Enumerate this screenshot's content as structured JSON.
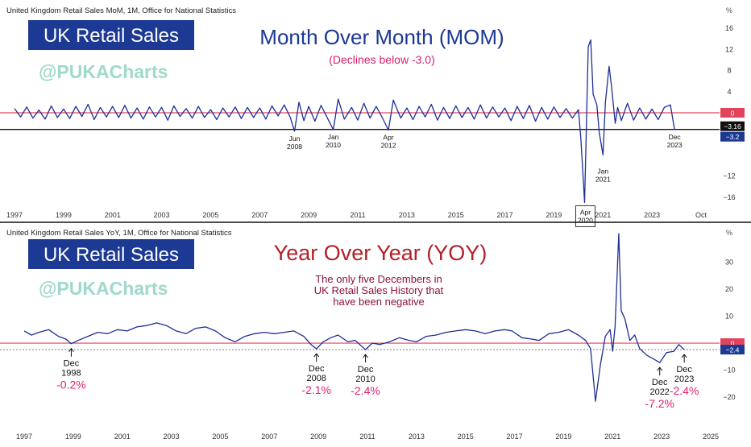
{
  "chart_data": [
    {
      "type": "line",
      "header": "United Kingdom Retail Sales MoM, 1M, Office for National Statistics",
      "badge": "UK Retail Sales",
      "watermark": "@PUKACharts",
      "title": "Month Over Month (MOM)",
      "subtitle": "(Declines below -3.0)",
      "unit": "%",
      "ylim": [
        -18,
        18
      ],
      "xlim": [
        1997,
        2025
      ],
      "y_ticks": [
        16,
        12,
        8,
        4,
        0,
        -12,
        -16
      ],
      "x_ticks": [
        "1997",
        "1999",
        "2001",
        "2003",
        "2005",
        "2007",
        "2009",
        "2011",
        "2013",
        "2015",
        "2017",
        "2019",
        "2021",
        "2023",
        "Oct"
      ],
      "zero_label": "0",
      "price_labels": {
        "threshold": "−3.16",
        "last": "−3.2"
      },
      "threshold": -3.16,
      "annotations": [
        {
          "x": 2008.42,
          "y": -3.5,
          "lines": [
            "Jun",
            "2008"
          ]
        },
        {
          "x": 2010.0,
          "y": -3.2,
          "lines": [
            "Jan",
            "2010"
          ]
        },
        {
          "x": 2012.25,
          "y": -3.3,
          "lines": [
            "Apr",
            "2012"
          ]
        },
        {
          "x": 2020.25,
          "y": -17.0,
          "lines": [
            "Apr",
            "2020"
          ],
          "boxed": true
        },
        {
          "x": 2021.0,
          "y": -4.5,
          "lines": [
            "Jan",
            "2021"
          ]
        },
        {
          "x": 2023.92,
          "y": -3.2,
          "lines": [
            "Dec",
            "2023"
          ]
        }
      ],
      "series": [
        {
          "color": "#1c2f96",
          "points": [
            [
              1997.0,
              0.8
            ],
            [
              1997.25,
              -0.8
            ],
            [
              1997.5,
              1.1
            ],
            [
              1997.75,
              -1.0
            ],
            [
              1998.0,
              0.5
            ],
            [
              1998.25,
              -1.2
            ],
            [
              1998.5,
              1.3
            ],
            [
              1998.75,
              -0.9
            ],
            [
              1999.0,
              0.7
            ],
            [
              1999.25,
              -1.1
            ],
            [
              1999.5,
              1.2
            ],
            [
              1999.75,
              -0.7
            ],
            [
              2000.0,
              1.6
            ],
            [
              2000.25,
              -1.3
            ],
            [
              2000.5,
              1.0
            ],
            [
              2000.75,
              -0.8
            ],
            [
              2001.0,
              1.2
            ],
            [
              2001.25,
              -0.9
            ],
            [
              2001.5,
              1.4
            ],
            [
              2001.75,
              -1.0
            ],
            [
              2002.0,
              0.9
            ],
            [
              2002.25,
              -1.2
            ],
            [
              2002.5,
              1.1
            ],
            [
              2002.75,
              -0.8
            ],
            [
              2003.0,
              1.0
            ],
            [
              2003.25,
              -1.4
            ],
            [
              2003.5,
              1.3
            ],
            [
              2003.75,
              -0.7
            ],
            [
              2004.0,
              0.8
            ],
            [
              2004.25,
              -1.0
            ],
            [
              2004.5,
              1.2
            ],
            [
              2004.75,
              -0.9
            ],
            [
              2005.0,
              0.6
            ],
            [
              2005.25,
              -1.3
            ],
            [
              2005.5,
              0.9
            ],
            [
              2005.75,
              -0.8
            ],
            [
              2006.0,
              1.1
            ],
            [
              2006.25,
              -1.1
            ],
            [
              2006.5,
              1.0
            ],
            [
              2006.75,
              -0.9
            ],
            [
              2007.0,
              0.9
            ],
            [
              2007.25,
              -1.2
            ],
            [
              2007.5,
              1.3
            ],
            [
              2007.75,
              -0.6
            ],
            [
              2008.0,
              1.5
            ],
            [
              2008.25,
              -0.9
            ],
            [
              2008.42,
              -3.5
            ],
            [
              2008.6,
              2.0
            ],
            [
              2008.8,
              -1.5
            ],
            [
              2009.0,
              1.2
            ],
            [
              2009.25,
              -1.6
            ],
            [
              2009.5,
              1.4
            ],
            [
              2009.75,
              -0.9
            ],
            [
              2010.0,
              -3.2
            ],
            [
              2010.2,
              2.6
            ],
            [
              2010.45,
              -1.2
            ],
            [
              2010.75,
              1.0
            ],
            [
              2011.0,
              -1.4
            ],
            [
              2011.25,
              1.8
            ],
            [
              2011.5,
              -1.0
            ],
            [
              2011.75,
              1.2
            ],
            [
              2012.0,
              -0.9
            ],
            [
              2012.25,
              -3.3
            ],
            [
              2012.45,
              2.4
            ],
            [
              2012.75,
              -1.0
            ],
            [
              2013.0,
              0.9
            ],
            [
              2013.25,
              -1.3
            ],
            [
              2013.5,
              1.2
            ],
            [
              2013.75,
              -0.8
            ],
            [
              2014.0,
              1.6
            ],
            [
              2014.25,
              -1.4
            ],
            [
              2014.5,
              1.0
            ],
            [
              2014.75,
              -1.1
            ],
            [
              2015.0,
              1.3
            ],
            [
              2015.25,
              -0.9
            ],
            [
              2015.5,
              1.0
            ],
            [
              2015.75,
              -1.2
            ],
            [
              2016.0,
              1.5
            ],
            [
              2016.25,
              -1.0
            ],
            [
              2016.5,
              1.1
            ],
            [
              2016.75,
              -0.8
            ],
            [
              2017.0,
              0.9
            ],
            [
              2017.25,
              -1.5
            ],
            [
              2017.5,
              1.2
            ],
            [
              2017.75,
              -1.1
            ],
            [
              2018.0,
              1.4
            ],
            [
              2018.25,
              -1.6
            ],
            [
              2018.5,
              1.0
            ],
            [
              2018.75,
              -1.2
            ],
            [
              2019.0,
              1.1
            ],
            [
              2019.25,
              -0.9
            ],
            [
              2019.5,
              0.8
            ],
            [
              2019.75,
              -1.0
            ],
            [
              2020.0,
              0.6
            ],
            [
              2020.1,
              -5.0
            ],
            [
              2020.25,
              -17.0
            ],
            [
              2020.4,
              12.5
            ],
            [
              2020.5,
              13.8
            ],
            [
              2020.6,
              3.5
            ],
            [
              2020.75,
              1.5
            ],
            [
              2020.85,
              -3.8
            ],
            [
              2021.0,
              -8.0
            ],
            [
              2021.1,
              2.0
            ],
            [
              2021.25,
              8.8
            ],
            [
              2021.35,
              5.0
            ],
            [
              2021.5,
              -2.0
            ],
            [
              2021.6,
              1.0
            ],
            [
              2021.75,
              -1.5
            ],
            [
              2022.0,
              1.8
            ],
            [
              2022.25,
              -1.4
            ],
            [
              2022.5,
              0.9
            ],
            [
              2022.75,
              -1.2
            ],
            [
              2023.0,
              0.7
            ],
            [
              2023.25,
              -1.3
            ],
            [
              2023.5,
              1.0
            ],
            [
              2023.75,
              1.5
            ],
            [
              2023.92,
              -3.2
            ]
          ]
        }
      ]
    },
    {
      "type": "line",
      "header": "United Kingdom Retail Sales YoY, 1M, Office for National Statistics",
      "badge": "UK Retail Sales",
      "watermark": "@PUKACharts",
      "title": "Year Over Year (YOY)",
      "note": [
        "The only five Decembers in",
        "UK Retail Sales History that",
        "have been negative"
      ],
      "unit": "%",
      "ylim": [
        -25,
        42
      ],
      "xlim": [
        1997,
        2025
      ],
      "y_ticks": [
        30,
        20,
        10,
        0,
        -10,
        -20
      ],
      "x_ticks": [
        "1997",
        "1999",
        "2001",
        "2003",
        "2005",
        "2007",
        "2009",
        "2011",
        "2013",
        "2015",
        "2017",
        "2019",
        "2021",
        "2023",
        "2025"
      ],
      "zero_label": "0",
      "price_labels": {
        "last": "−2.4"
      },
      "threshold": -2.4,
      "annotations": [
        {
          "x": 1998.92,
          "y": -0.2,
          "lines": [
            "Dec",
            "1998"
          ],
          "value": "-0.2%"
        },
        {
          "x": 2008.92,
          "y": -2.1,
          "lines": [
            "Dec",
            "2008"
          ],
          "value": "-2.1%"
        },
        {
          "x": 2010.92,
          "y": -2.4,
          "lines": [
            "Dec",
            "2010"
          ],
          "value": "-2.4%"
        },
        {
          "x": 2022.92,
          "y": -7.2,
          "lines": [
            "Dec",
            "2022"
          ],
          "value": "-7.2%"
        },
        {
          "x": 2023.92,
          "y": -2.4,
          "lines": [
            "Dec",
            "2023"
          ],
          "value": "-2.4%"
        }
      ],
      "series": [
        {
          "color": "#1c2f96",
          "points": [
            [
              1997.0,
              4.5
            ],
            [
              1997.3,
              3.0
            ],
            [
              1997.6,
              4.0
            ],
            [
              1998.0,
              5.0
            ],
            [
              1998.4,
              2.5
            ],
            [
              1998.7,
              1.5
            ],
            [
              1998.92,
              -0.2
            ],
            [
              1999.2,
              1.0
            ],
            [
              1999.6,
              2.5
            ],
            [
              2000.0,
              4.0
            ],
            [
              2000.4,
              3.5
            ],
            [
              2000.8,
              5.0
            ],
            [
              2001.2,
              4.5
            ],
            [
              2001.6,
              6.0
            ],
            [
              2002.0,
              6.5
            ],
            [
              2002.4,
              7.5
            ],
            [
              2002.8,
              6.5
            ],
            [
              2003.2,
              4.5
            ],
            [
              2003.6,
              3.5
            ],
            [
              2004.0,
              5.5
            ],
            [
              2004.4,
              6.0
            ],
            [
              2004.8,
              4.5
            ],
            [
              2005.2,
              2.0
            ],
            [
              2005.6,
              0.5
            ],
            [
              2006.0,
              2.5
            ],
            [
              2006.4,
              3.5
            ],
            [
              2006.8,
              4.0
            ],
            [
              2007.2,
              3.5
            ],
            [
              2007.6,
              4.0
            ],
            [
              2008.0,
              4.5
            ],
            [
              2008.4,
              2.5
            ],
            [
              2008.7,
              -0.5
            ],
            [
              2008.92,
              -2.1
            ],
            [
              2009.2,
              0.5
            ],
            [
              2009.5,
              2.0
            ],
            [
              2009.8,
              3.0
            ],
            [
              2010.2,
              0.5
            ],
            [
              2010.5,
              1.0
            ],
            [
              2010.92,
              -2.4
            ],
            [
              2011.2,
              0.0
            ],
            [
              2011.5,
              -0.5
            ],
            [
              2011.9,
              0.5
            ],
            [
              2012.3,
              2.0
            ],
            [
              2012.7,
              1.0
            ],
            [
              2013.0,
              0.5
            ],
            [
              2013.4,
              2.5
            ],
            [
              2013.8,
              3.0
            ],
            [
              2014.2,
              4.0
            ],
            [
              2014.6,
              4.5
            ],
            [
              2015.0,
              5.0
            ],
            [
              2015.4,
              4.5
            ],
            [
              2015.8,
              3.5
            ],
            [
              2016.2,
              4.5
            ],
            [
              2016.6,
              5.0
            ],
            [
              2016.9,
              4.5
            ],
            [
              2017.3,
              2.0
            ],
            [
              2017.7,
              1.5
            ],
            [
              2018.0,
              1.0
            ],
            [
              2018.4,
              3.5
            ],
            [
              2018.8,
              4.0
            ],
            [
              2019.2,
              5.0
            ],
            [
              2019.6,
              3.0
            ],
            [
              2019.9,
              1.0
            ],
            [
              2020.1,
              -2.0
            ],
            [
              2020.3,
              -21.5
            ],
            [
              2020.5,
              -8.0
            ],
            [
              2020.7,
              2.5
            ],
            [
              2020.9,
              5.0
            ],
            [
              2021.0,
              -3.0
            ],
            [
              2021.1,
              6.0
            ],
            [
              2021.25,
              40.5
            ],
            [
              2021.35,
              12.0
            ],
            [
              2021.5,
              9.0
            ],
            [
              2021.7,
              1.0
            ],
            [
              2021.9,
              3.0
            ],
            [
              2022.1,
              -2.0
            ],
            [
              2022.4,
              -4.5
            ],
            [
              2022.7,
              -6.0
            ],
            [
              2022.92,
              -7.2
            ],
            [
              2023.2,
              -3.5
            ],
            [
              2023.5,
              -3.0
            ],
            [
              2023.7,
              -0.5
            ],
            [
              2023.92,
              -2.4
            ]
          ]
        }
      ]
    }
  ]
}
